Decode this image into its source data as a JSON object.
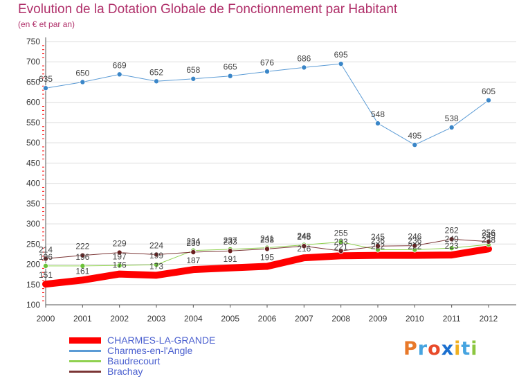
{
  "title": "Evolution de la Dotation Globale de Fonctionnement par Habitant",
  "subtitle": "(en € et par an)",
  "logo": {
    "text": [
      "P",
      "r",
      "o",
      "x",
      "i",
      "t",
      "i"
    ],
    "colors": [
      "#e8792a",
      "#46a4e0",
      "#e84a2a",
      "#1a6fcf",
      "#f0b020",
      "#46a4e0",
      "#8cc63f"
    ]
  },
  "colors": {
    "title": "#b0306a",
    "axis": "#555555",
    "grid": "#dddddd",
    "tick_red": "#ff0000"
  },
  "chart_data": {
    "type": "line",
    "title": "Evolution de la Dotation Globale de Fonctionnement par Habitant",
    "subtitle": "(en € et par an)",
    "xlabel": "",
    "ylabel": "",
    "x": [
      2000,
      2001,
      2002,
      2003,
      2004,
      2005,
      2006,
      2007,
      2008,
      2009,
      2010,
      2011,
      2012
    ],
    "ylim": [
      100,
      750
    ],
    "yticks": [
      100,
      150,
      200,
      250,
      300,
      350,
      400,
      450,
      500,
      550,
      600,
      650,
      700,
      750
    ],
    "grid": true,
    "legend_position": "bottom-left",
    "series": [
      {
        "name": "CHARMES-LA-GRANDE",
        "color": "#ff0000",
        "width": 10,
        "markers": false,
        "values": [
          151,
          161,
          176,
          173,
          187,
          191,
          195,
          216,
          221,
          222,
          222,
          223,
          238
        ],
        "labels": [
          151,
          161,
          176,
          173,
          187,
          191,
          195,
          216,
          221,
          222,
          222,
          223,
          238
        ]
      },
      {
        "name": "Charmes-en-l'Angle",
        "color": "#5b9bd5",
        "width": 1,
        "markers": true,
        "marker_color": "#3a86c8",
        "values": [
          635,
          650,
          669,
          652,
          658,
          665,
          676,
          686,
          695,
          548,
          495,
          538,
          605
        ],
        "labels": [
          635,
          650,
          669,
          652,
          658,
          665,
          676,
          686,
          695,
          548,
          495,
          538,
          605
        ]
      },
      {
        "name": "Baudrecourt",
        "color": "#8fd14f",
        "width": 1,
        "markers": true,
        "marker_color": "#6cc23a",
        "values": [
          196,
          196,
          197,
          199,
          234,
          237,
          241,
          248,
          255,
          236,
          236,
          240,
          249
        ],
        "labels": [
          196,
          196,
          197,
          199,
          234,
          237,
          241,
          248,
          255,
          236,
          236,
          240,
          249
        ]
      },
      {
        "name": "Brachay",
        "color": "#7b3535",
        "width": 1,
        "markers": true,
        "marker_color": "#6a1f1f",
        "values": [
          214,
          222,
          229,
          224,
          230,
          233,
          238,
          245,
          233,
          245,
          246,
          262,
          256
        ],
        "labels": [
          214,
          222,
          229,
          224,
          230,
          233,
          238,
          245,
          233,
          245,
          246,
          262,
          256
        ]
      }
    ]
  }
}
